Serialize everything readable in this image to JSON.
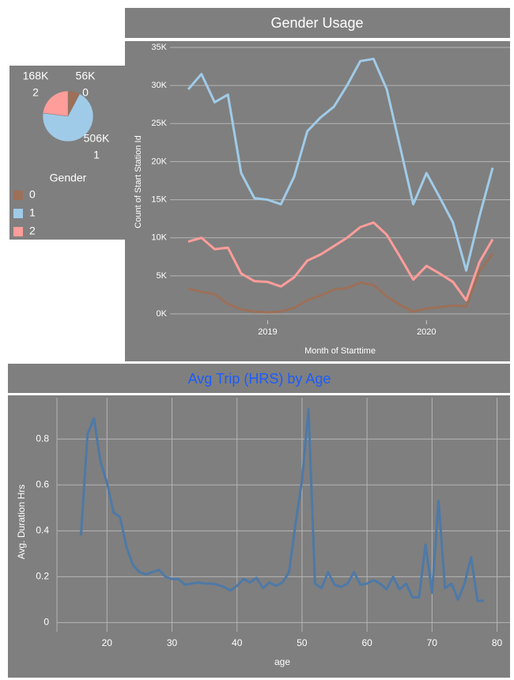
{
  "chart_data": [
    {
      "type": "pie",
      "categories": [
        "0",
        "1",
        "2"
      ],
      "values": [
        56000,
        506000,
        168000
      ],
      "value_labels": [
        "56K",
        "506K",
        "168K"
      ],
      "colors": [
        "#9c7059",
        "#a0cbe8",
        "#ff9d9a"
      ],
      "legend_title": "Gender"
    },
    {
      "type": "line",
      "title": "Gender Usage",
      "y_label": "Count of Start Station Id",
      "x_label": "Month of Starttime",
      "categories": [
        null,
        null,
        null,
        null,
        null,
        null,
        "2019",
        null,
        null,
        null,
        null,
        null,
        null,
        null,
        null,
        null,
        null,
        null,
        "2020",
        null,
        null,
        null,
        null,
        null
      ],
      "series": [
        {
          "name": "0",
          "color": "#9c7059",
          "values": [
            3300,
            2900,
            2600,
            1300,
            600,
            300,
            200,
            300,
            800,
            1800,
            2400,
            3200,
            3400,
            4100,
            3800,
            2300,
            1200,
            300,
            700,
            900,
            1100,
            1000,
            5600,
            7900
          ]
        },
        {
          "name": "1",
          "color": "#a0cbe8",
          "values": [
            29500,
            31500,
            27800,
            28800,
            18500,
            15200,
            15000,
            14400,
            18000,
            24000,
            25800,
            27200,
            30000,
            33200,
            33500,
            29500,
            22000,
            14400,
            18500,
            15300,
            12000,
            5700,
            12800,
            19200
          ]
        },
        {
          "name": "2",
          "color": "#ff9d9a",
          "values": [
            9500,
            10000,
            8500,
            8700,
            5300,
            4300,
            4200,
            3600,
            4800,
            7000,
            7800,
            8900,
            10000,
            11400,
            12000,
            10400,
            7500,
            4500,
            6300,
            5300,
            4200,
            1800,
            6800,
            9800
          ]
        }
      ],
      "ylim": [
        0,
        35000
      ],
      "yticks": [
        {
          "value": 0,
          "label": "0K"
        },
        {
          "value": 5000,
          "label": "5K"
        },
        {
          "value": 10000,
          "label": "10K"
        },
        {
          "value": 15000,
          "label": "15K"
        },
        {
          "value": 20000,
          "label": "20K"
        },
        {
          "value": 25000,
          "label": "25K"
        },
        {
          "value": 30000,
          "label": "30K"
        },
        {
          "value": 35000,
          "label": "35K"
        }
      ],
      "grid": true
    },
    {
      "type": "line",
      "title": "Avg Trip (HRS) by Age",
      "y_label": "Avg. Duration Hrs",
      "x_label": "age",
      "color": "#4e79a7",
      "x": [
        16,
        17,
        18,
        19,
        20,
        21,
        22,
        23,
        24,
        25,
        26,
        27,
        28,
        29,
        30,
        31,
        32,
        33,
        34,
        35,
        36,
        37,
        38,
        39,
        40,
        41,
        42,
        43,
        44,
        45,
        46,
        47,
        48,
        49,
        50,
        51,
        52,
        53,
        54,
        55,
        56,
        57,
        58,
        59,
        60,
        61,
        62,
        63,
        64,
        65,
        66,
        67,
        68,
        69,
        70,
        71,
        72,
        73,
        74,
        75,
        76,
        77,
        78
      ],
      "values": [
        0.38,
        0.82,
        0.89,
        0.7,
        0.61,
        0.48,
        0.46,
        0.33,
        0.25,
        0.22,
        0.21,
        0.22,
        0.23,
        0.2,
        0.19,
        0.19,
        0.165,
        0.17,
        0.175,
        0.17,
        0.17,
        0.165,
        0.155,
        0.14,
        0.16,
        0.19,
        0.175,
        0.195,
        0.15,
        0.175,
        0.16,
        0.175,
        0.22,
        0.43,
        0.62,
        0.93,
        0.17,
        0.15,
        0.22,
        0.165,
        0.155,
        0.17,
        0.22,
        0.165,
        0.17,
        0.185,
        0.17,
        0.145,
        0.2,
        0.145,
        0.17,
        0.11,
        0.11,
        0.34,
        0.13,
        0.53,
        0.15,
        0.17,
        0.1,
        0.17,
        0.285,
        0.095,
        0.095
      ],
      "xlim": [
        12.3,
        82
      ],
      "ylim": [
        -0.04,
        0.98
      ],
      "xticks": [
        20,
        30,
        40,
        50,
        60,
        70,
        80
      ],
      "yticks": [
        0,
        0.2,
        0.4,
        0.6,
        0.8
      ],
      "grid": true
    }
  ]
}
